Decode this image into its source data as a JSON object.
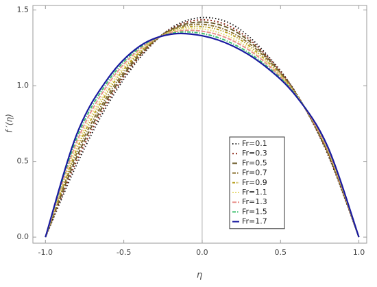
{
  "chart_data": {
    "type": "line",
    "x_label": "η",
    "y_label": "f ′(η)",
    "x": [
      -1,
      -0.8,
      -0.6,
      -0.4,
      -0.2,
      0,
      0.2,
      0.4,
      0.6,
      0.8,
      1
    ],
    "xlim": [
      -1.08,
      1.05
    ],
    "ylim": [
      -0.04,
      1.53
    ],
    "xticks": [
      {
        "value": -1,
        "label": "-1.0"
      },
      {
        "value": -0.5,
        "label": "-0.5"
      },
      {
        "value": 0,
        "label": "0.0"
      },
      {
        "value": 0.5,
        "label": "0.5"
      },
      {
        "value": 1,
        "label": "1.0"
      }
    ],
    "yticks": [
      {
        "value": 0,
        "label": "0.0"
      },
      {
        "value": 0.5,
        "label": "0.5"
      },
      {
        "value": 1,
        "label": "1.0"
      },
      {
        "value": 1.5,
        "label": "1.5"
      }
    ],
    "legend": "lower right",
    "series": [
      {
        "name": "Fr=0.1",
        "color": "#1a1a1a",
        "dash": "1.5,3",
        "values": [
          0,
          0.48,
          0.88,
          1.18,
          1.38,
          1.45,
          1.4,
          1.22,
          0.95,
          0.55,
          0
        ]
      },
      {
        "name": "Fr=0.3",
        "color": "#8b2a1a",
        "dash": "2,3",
        "values": [
          0,
          0.505,
          0.9,
          1.19,
          1.375,
          1.435,
          1.38,
          1.21,
          0.95,
          0.555,
          0
        ]
      },
      {
        "name": "Fr=0.5",
        "color": "#6b5a2a",
        "dash": "7,3",
        "values": [
          0,
          0.53,
          0.92,
          1.2,
          1.37,
          1.42,
          1.365,
          1.2,
          0.945,
          0.56,
          0
        ]
      },
      {
        "name": "Fr=0.7",
        "color": "#8a7030",
        "dash": "5,2,1.5,2",
        "values": [
          0,
          0.555,
          0.94,
          1.21,
          1.365,
          1.405,
          1.345,
          1.19,
          0.945,
          0.57,
          0
        ]
      },
      {
        "name": "Fr=0.9",
        "color": "#b8a020",
        "dash": "4,2,1.5,2,1.5,2",
        "values": [
          0,
          0.58,
          0.965,
          1.22,
          1.36,
          1.39,
          1.33,
          1.175,
          0.94,
          0.575,
          0
        ]
      },
      {
        "name": "Fr=1.1",
        "color": "#e8dc7a",
        "dash": "2,2",
        "values": [
          0,
          0.605,
          0.985,
          1.23,
          1.355,
          1.375,
          1.31,
          1.165,
          0.94,
          0.58,
          0
        ]
      },
      {
        "name": "Fr=1.3",
        "color": "#e8908a",
        "dash": "6,2",
        "values": [
          0,
          0.63,
          1.01,
          1.24,
          1.35,
          1.36,
          1.295,
          1.155,
          0.935,
          0.585,
          0
        ]
      },
      {
        "name": "Fr=1.5",
        "color": "#40c070",
        "dash": "5,2,1.5,2",
        "values": [
          0,
          0.655,
          1.03,
          1.25,
          1.345,
          1.345,
          1.275,
          1.14,
          0.935,
          0.595,
          0
        ]
      },
      {
        "name": "Fr=1.7",
        "color": "#1a1aa0",
        "dash": "",
        "values": [
          0,
          0.68,
          1.05,
          1.26,
          1.34,
          1.33,
          1.26,
          1.13,
          0.93,
          0.6,
          0
        ]
      }
    ]
  }
}
